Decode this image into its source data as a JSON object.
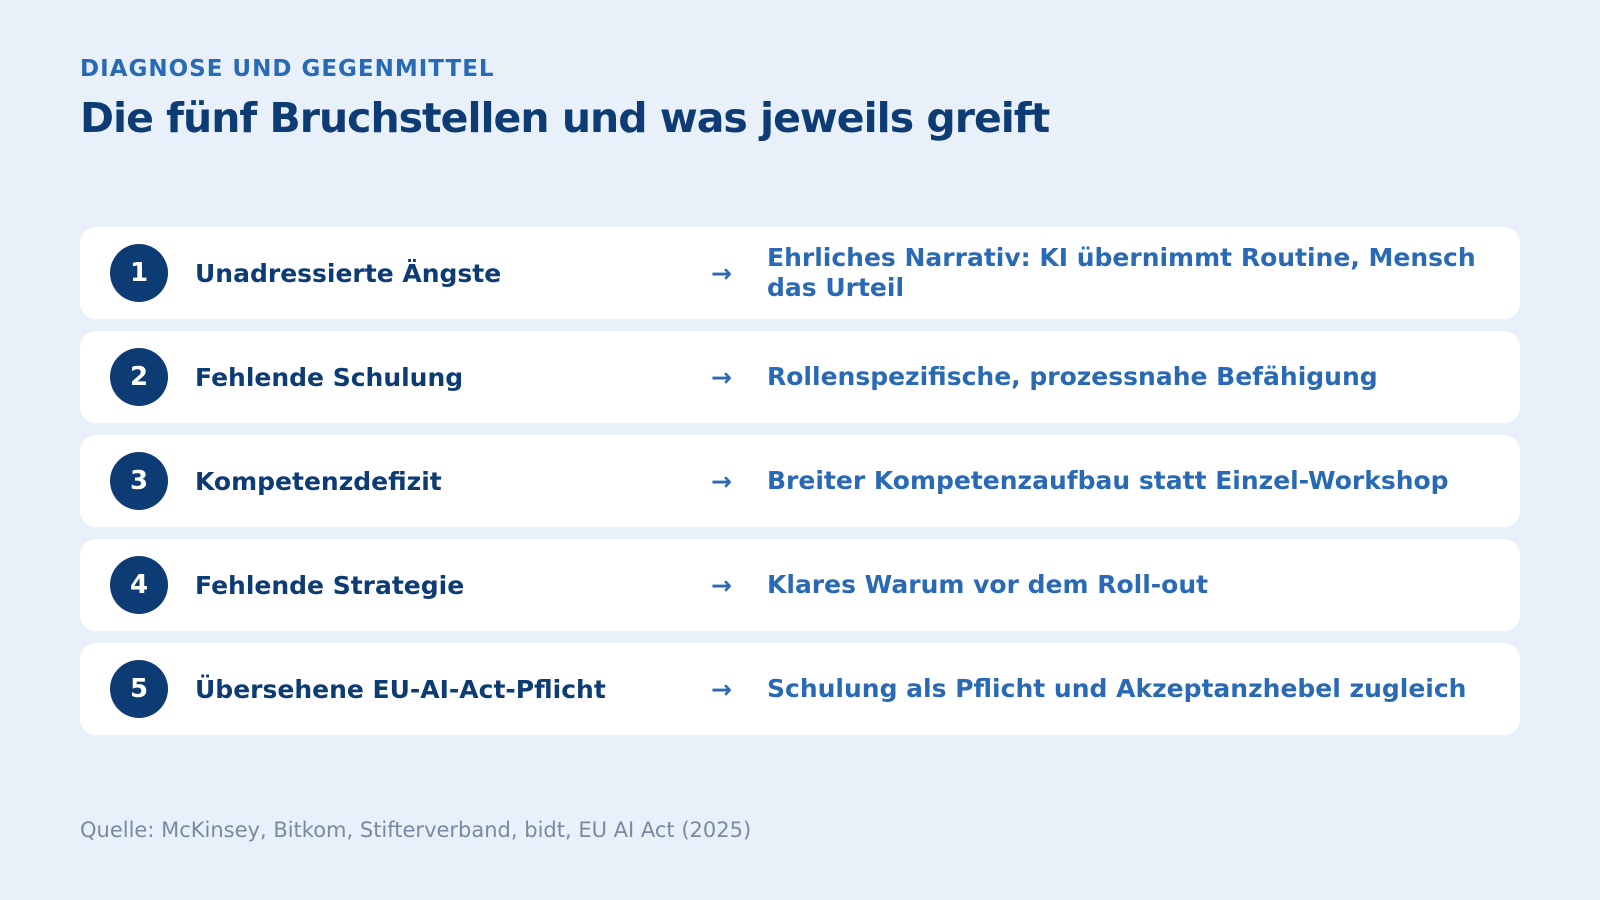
{
  "header": {
    "eyebrow": "DIAGNOSE UND GEGENMITTEL",
    "title": "Die fünf Bruchstellen und was jeweils greift"
  },
  "rows": [
    {
      "number": 1,
      "problem": "Unadressierte Ängste",
      "arrow": "→",
      "remedy": "Ehrliches Narrativ: KI übernimmt Routine, Mensch das Urteil"
    },
    {
      "number": 2,
      "problem": "Fehlende Schulung",
      "arrow": "→",
      "remedy": "Rollenspezifische, prozessnahe Befähigung"
    },
    {
      "number": 3,
      "problem": "Kompetenzdefizit",
      "arrow": "→",
      "remedy": "Breiter Kompetenzaufbau statt Einzel-Workshop"
    },
    {
      "number": 4,
      "problem": "Fehlende Strategie",
      "arrow": "→",
      "remedy": "Klares Warum vor dem Roll-out"
    },
    {
      "number": 5,
      "problem": "Übersehene EU-AI-Act-Pflicht",
      "arrow": "→",
      "remedy": "Schulung als Pflicht und Akzeptanzhebel zugleich"
    }
  ],
  "source": "Quelle: McKinsey, Bitkom, Stifterverband, bidt, EU AI Act (2025)"
}
